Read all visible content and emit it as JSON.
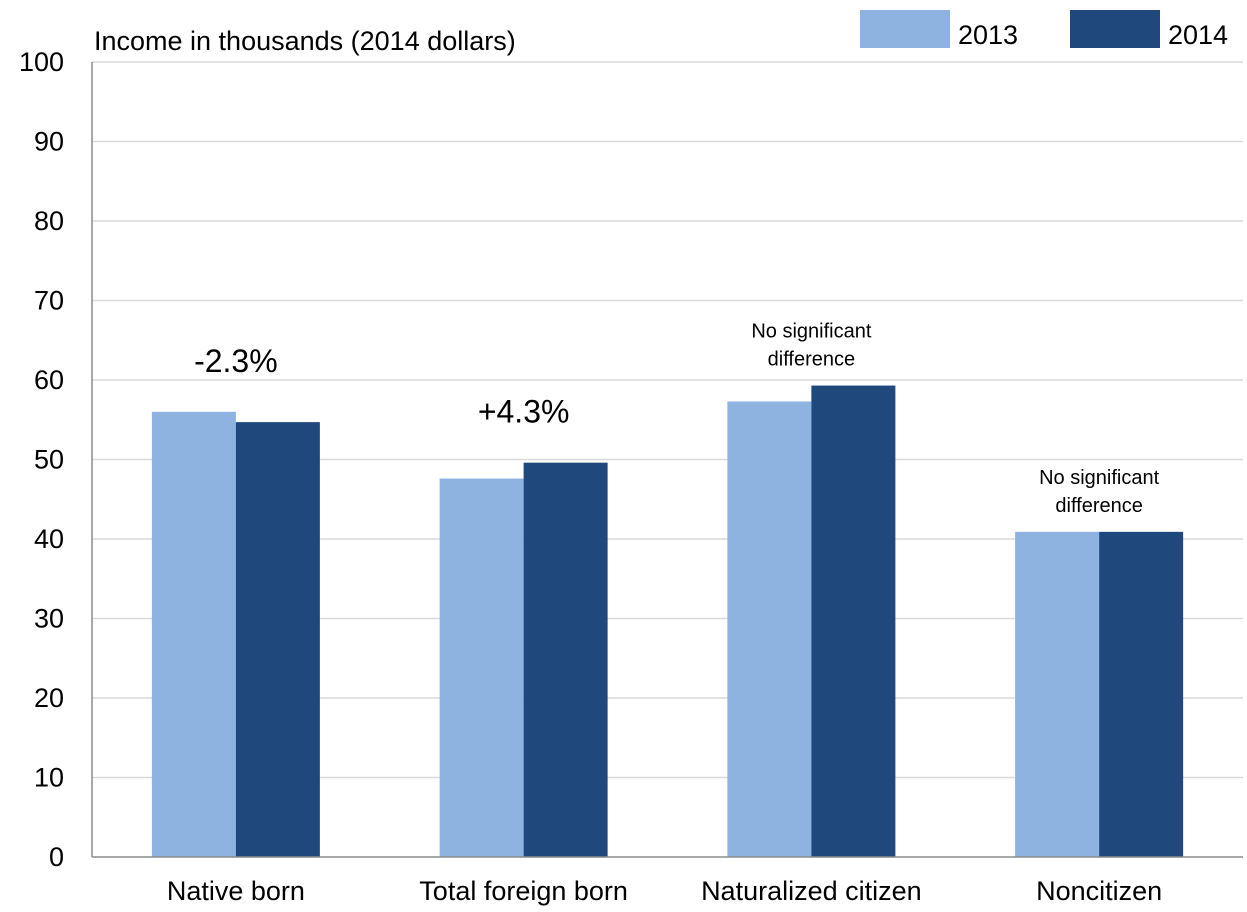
{
  "chart_data": {
    "type": "bar",
    "title": "",
    "ylabel": "Income in thousands (2014 dollars)",
    "xlabel": "",
    "ylim": [
      0,
      100
    ],
    "yticks": [
      0,
      10,
      20,
      30,
      40,
      50,
      60,
      70,
      80,
      90,
      100
    ],
    "grid": true,
    "legend_position": "top-right",
    "categories": [
      "Native born",
      "Total foreign born",
      "Naturalized citizen",
      "Noncitizen"
    ],
    "series": [
      {
        "name": "2013",
        "color": "#8EB3E1",
        "values": [
          56.0,
          47.6,
          57.3,
          40.9
        ]
      },
      {
        "name": "2014",
        "color": "#1F497D",
        "values": [
          54.7,
          49.6,
          59.3,
          40.9
        ]
      }
    ],
    "annotations": [
      {
        "category": "Native born",
        "lines": [
          "-2.3%"
        ],
        "size": "large"
      },
      {
        "category": "Total foreign born",
        "lines": [
          "+4.3%"
        ],
        "size": "large"
      },
      {
        "category": "Naturalized citizen",
        "lines": [
          "No significant",
          "difference"
        ],
        "size": "small"
      },
      {
        "category": "Noncitizen",
        "lines": [
          "No significant",
          "difference"
        ],
        "size": "small"
      }
    ]
  }
}
